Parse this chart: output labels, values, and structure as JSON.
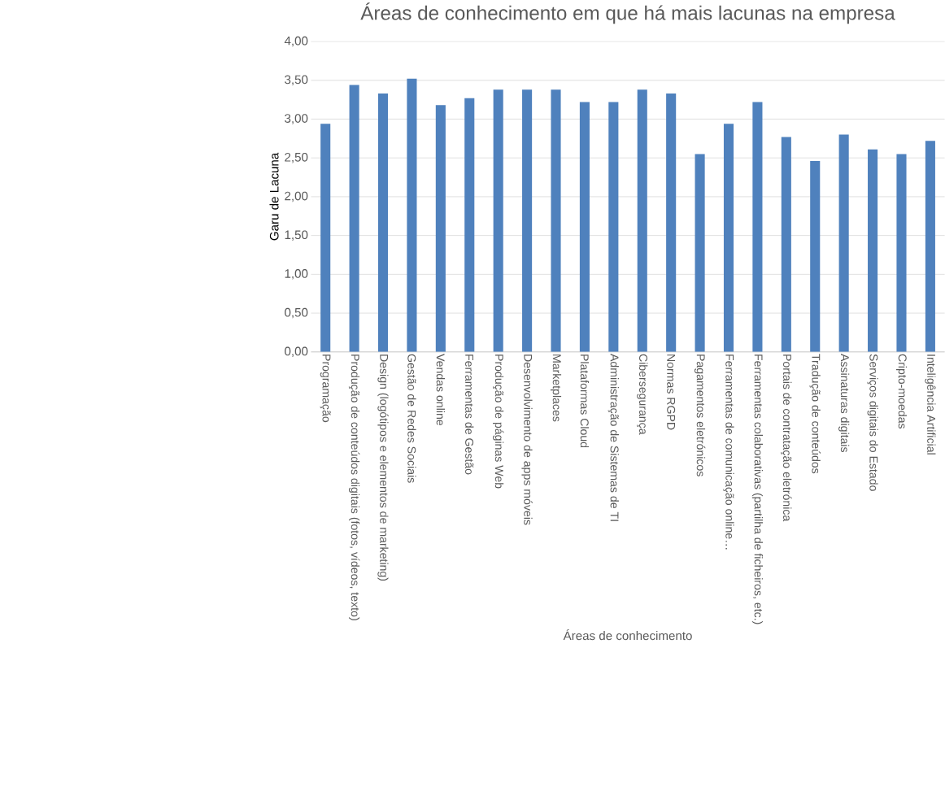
{
  "chart_data": {
    "type": "bar",
    "title": "Áreas de conhecimento em que há mais lacunas na empresa",
    "xlabel": "Áreas de conhecimento",
    "ylabel": "Garu de  Lacuna",
    "categories": [
      "Programação",
      "Produção de conteúdos digitais (fotos, vídeos, texto)",
      "Design (logótipos e elementos de marketing)",
      "Gestão de Redes Sociais",
      "Vendas online",
      "Ferramentas de Gestão",
      "Produção de páginas Web",
      "Desenvolvimento de apps móveis",
      "Marketplaces",
      "Plataformas Cloud",
      "Administração de Sistemas de TI",
      "Cibersegurança",
      "Normas RGPD",
      "Pagamentos eletrónicos",
      "Ferramentas de comunicação online…",
      "Ferramentas colaborativas (partilha de ficheiros, etc.)",
      "Portais de contratação eletrónica",
      "Tradução de conteúdos",
      "Assinaturas digitais",
      "Serviços digitais do Estado",
      "Cripto-moedas",
      "Inteligência Artificial"
    ],
    "values": [
      2.94,
      3.44,
      3.33,
      3.52,
      3.18,
      3.27,
      3.38,
      3.38,
      3.38,
      3.22,
      3.22,
      3.38,
      3.33,
      2.55,
      2.94,
      3.22,
      2.77,
      2.46,
      2.8,
      2.61,
      2.55,
      2.72
    ],
    "color": "#4f81bd",
    "ylim": [
      0,
      4
    ],
    "yticks": [
      {
        "value": 0,
        "label": "0,00"
      },
      {
        "value": 0.5,
        "label": "0,50"
      },
      {
        "value": 1,
        "label": "1,00"
      },
      {
        "value": 1.5,
        "label": "1,50"
      },
      {
        "value": 2,
        "label": "2,00"
      },
      {
        "value": 2.5,
        "label": "2,50"
      },
      {
        "value": 3,
        "label": "3,00"
      },
      {
        "value": 3.5,
        "label": "3,50"
      },
      {
        "value": 4,
        "label": "4,00"
      }
    ],
    "grid": "y"
  }
}
